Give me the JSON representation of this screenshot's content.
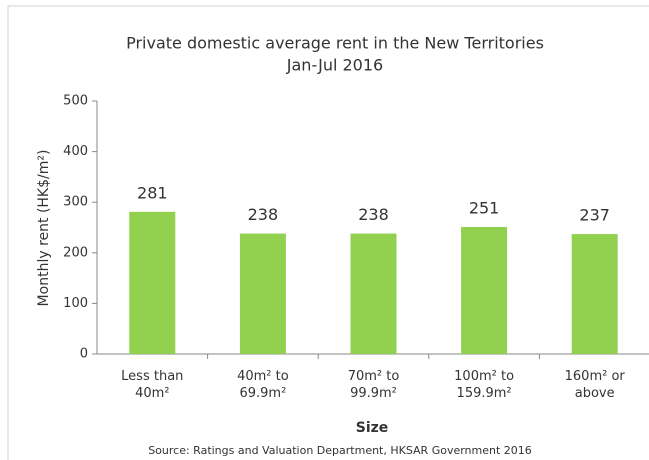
{
  "chart_data": {
    "type": "bar",
    "title": "Private domestic average rent in the New Territories",
    "subtitle": "Jan-Jul 2016",
    "y_label": "Monthly rent (HK$/m²)",
    "x_label": "Size",
    "source": "Source:  Ratings and Valuation Department, HKSAR Government 2016",
    "categories": [
      "Less than 40m²",
      "40m² to 69.9m²",
      "70m² to 99.9m²",
      "100m² to 159.9m²",
      "160m² or above"
    ],
    "values": [
      281,
      238,
      238,
      251,
      237
    ],
    "color": "#92d050",
    "ylim": [
      0,
      500
    ],
    "yticks": [
      0,
      100,
      200,
      300,
      400,
      500
    ],
    "grid": false
  }
}
